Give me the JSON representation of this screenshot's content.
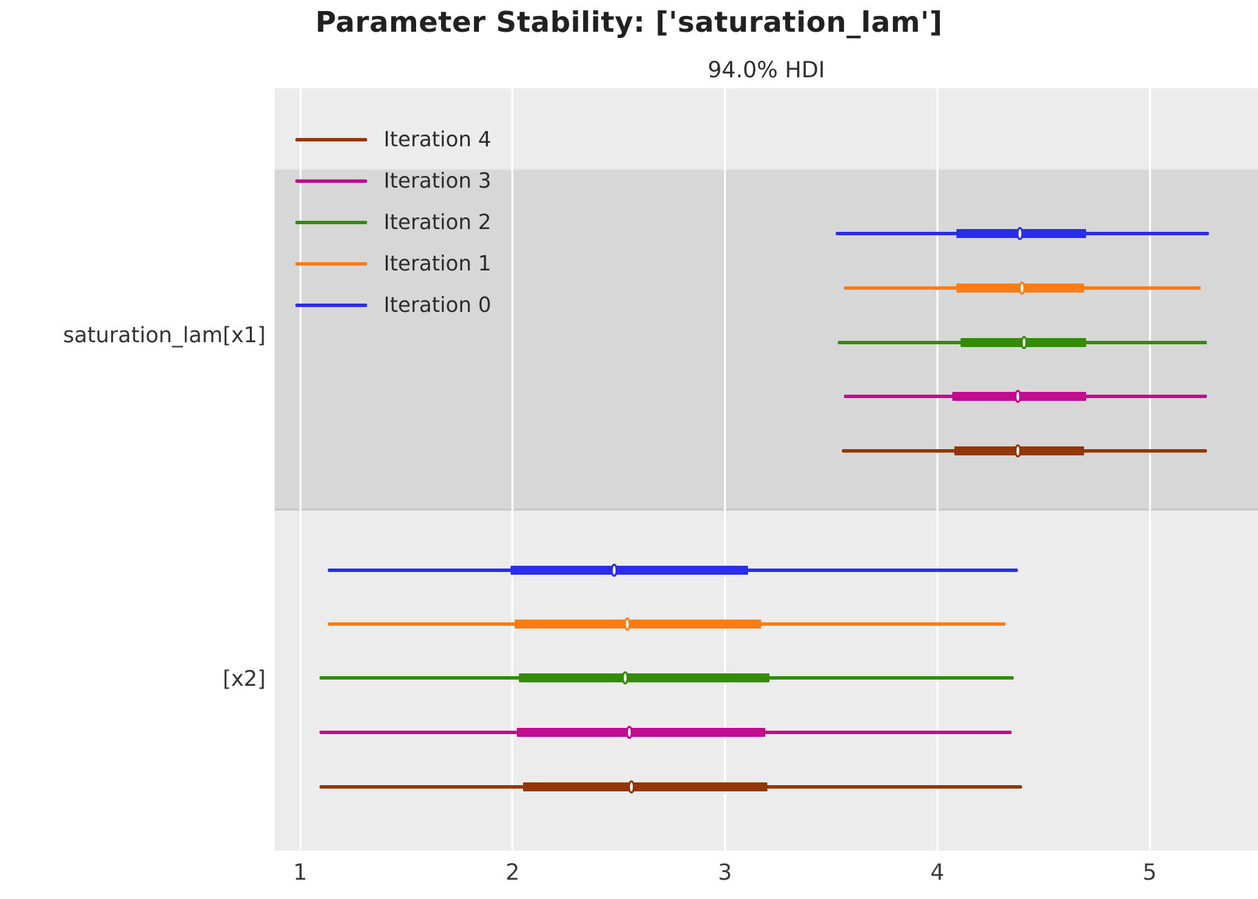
{
  "chart_data": {
    "type": "forest",
    "title": "Parameter Stability: ['saturation_lam']",
    "subtitle": "94.0% HDI",
    "hdi_prob": 0.94,
    "xticks": [
      1,
      2,
      3,
      4,
      5
    ],
    "xlim": [
      0.88,
      5.51
    ],
    "grid": "vertical-white-on-gray",
    "legend_position": "upper-left",
    "legend": [
      {
        "label": "Iteration 4",
        "color": "#933708"
      },
      {
        "label": "Iteration 3",
        "color": "#c10c90"
      },
      {
        "label": "Iteration 2",
        "color": "#328c06"
      },
      {
        "label": "Iteration 1",
        "color": "#fa7c17"
      },
      {
        "label": "Iteration 0",
        "color": "#2a2eec"
      }
    ],
    "colors": {
      "plot_bg": "#ececec",
      "band_bg": "#d7d7d7",
      "gridline": "#ffffff"
    },
    "groups": [
      {
        "label": "saturation_lam[x1]",
        "band": "dark",
        "rows": [
          {
            "iteration": "Iteration 0",
            "color": "#2a2eec",
            "hdi_low": 3.52,
            "hdi_high": 5.28,
            "q_low": 4.09,
            "q_high": 4.7,
            "median": 4.39
          },
          {
            "iteration": "Iteration 1",
            "color": "#fa7c17",
            "hdi_low": 3.56,
            "hdi_high": 5.24,
            "q_low": 4.09,
            "q_high": 4.69,
            "median": 4.4
          },
          {
            "iteration": "Iteration 2",
            "color": "#328c06",
            "hdi_low": 3.53,
            "hdi_high": 5.27,
            "q_low": 4.11,
            "q_high": 4.7,
            "median": 4.41
          },
          {
            "iteration": "Iteration 3",
            "color": "#c10c90",
            "hdi_low": 3.56,
            "hdi_high": 5.27,
            "q_low": 4.07,
            "q_high": 4.7,
            "median": 4.38
          },
          {
            "iteration": "Iteration 4",
            "color": "#933708",
            "hdi_low": 3.55,
            "hdi_high": 5.27,
            "q_low": 4.08,
            "q_high": 4.69,
            "median": 4.38
          }
        ]
      },
      {
        "label": "[x2]",
        "band": "light",
        "rows": [
          {
            "iteration": "Iteration 0",
            "color": "#2a2eec",
            "hdi_low": 1.13,
            "hdi_high": 4.38,
            "q_low": 1.99,
            "q_high": 3.11,
            "median": 2.48
          },
          {
            "iteration": "Iteration 1",
            "color": "#fa7c17",
            "hdi_low": 1.13,
            "hdi_high": 4.32,
            "q_low": 2.01,
            "q_high": 3.17,
            "median": 2.54
          },
          {
            "iteration": "Iteration 2",
            "color": "#328c06",
            "hdi_low": 1.09,
            "hdi_high": 4.36,
            "q_low": 2.03,
            "q_high": 3.21,
            "median": 2.53
          },
          {
            "iteration": "Iteration 3",
            "color": "#c10c90",
            "hdi_low": 1.09,
            "hdi_high": 4.35,
            "q_low": 2.02,
            "q_high": 3.19,
            "median": 2.55
          },
          {
            "iteration": "Iteration 4",
            "color": "#933708",
            "hdi_low": 1.09,
            "hdi_high": 4.4,
            "q_low": 2.05,
            "q_high": 3.2,
            "median": 2.56
          }
        ]
      }
    ]
  }
}
